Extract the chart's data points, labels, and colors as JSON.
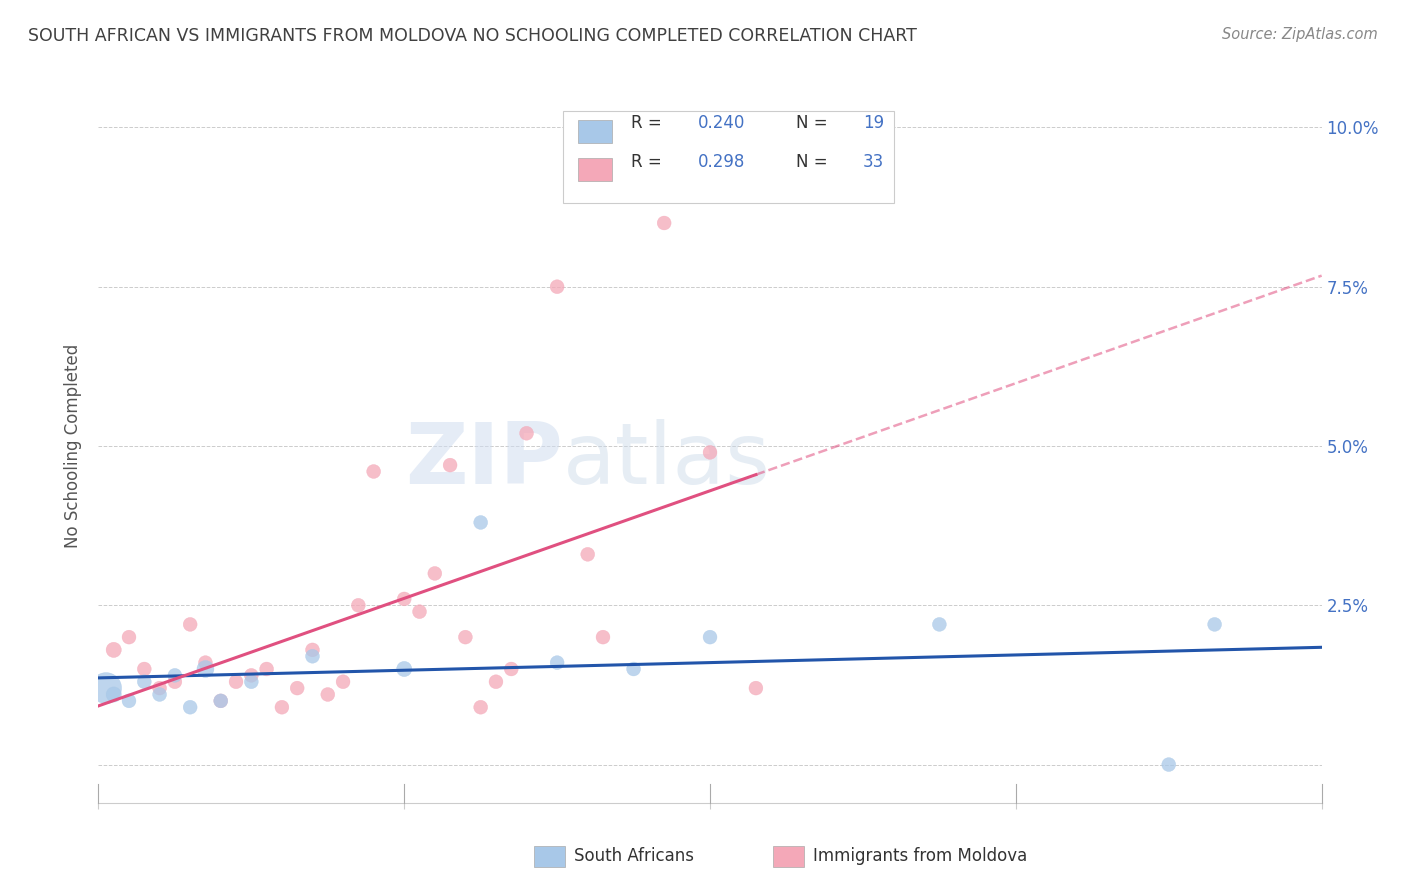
{
  "title": "SOUTH AFRICAN VS IMMIGRANTS FROM MOLDOVA NO SCHOOLING COMPLETED CORRELATION CHART",
  "source": "Source: ZipAtlas.com",
  "ylabel": "No Schooling Completed",
  "yticks": [
    0.0,
    0.025,
    0.05,
    0.075,
    0.1
  ],
  "ytick_labels": [
    "",
    "2.5%",
    "5.0%",
    "7.5%",
    "10.0%"
  ],
  "xlim": [
    0.0,
    0.08
  ],
  "ylim": [
    -0.006,
    0.106
  ],
  "blue_color": "#a8c8e8",
  "pink_color": "#f4a8b8",
  "blue_line_color": "#2255aa",
  "pink_line_color": "#e05080",
  "title_color": "#404040",
  "axis_color": "#4472c4",
  "watermark_zip": "ZIP",
  "watermark_atlas": "atlas",
  "south_africans_x": [
    0.0005,
    0.001,
    0.002,
    0.003,
    0.004,
    0.005,
    0.006,
    0.007,
    0.008,
    0.01,
    0.014,
    0.02,
    0.025,
    0.03,
    0.035,
    0.04,
    0.055,
    0.07,
    0.073
  ],
  "south_africans_y": [
    0.012,
    0.011,
    0.01,
    0.013,
    0.011,
    0.014,
    0.009,
    0.015,
    0.01,
    0.013,
    0.017,
    0.015,
    0.038,
    0.016,
    0.015,
    0.02,
    0.022,
    0.0,
    0.022
  ],
  "south_africans_size": [
    500,
    120,
    100,
    100,
    100,
    100,
    100,
    150,
    100,
    100,
    100,
    120,
    100,
    100,
    100,
    100,
    100,
    100,
    100
  ],
  "moldova_x": [
    0.001,
    0.002,
    0.003,
    0.004,
    0.005,
    0.006,
    0.007,
    0.008,
    0.009,
    0.01,
    0.011,
    0.012,
    0.013,
    0.014,
    0.015,
    0.016,
    0.017,
    0.018,
    0.02,
    0.021,
    0.022,
    0.023,
    0.024,
    0.025,
    0.026,
    0.027,
    0.028,
    0.03,
    0.032,
    0.033,
    0.037,
    0.04,
    0.043
  ],
  "moldova_y": [
    0.018,
    0.02,
    0.015,
    0.012,
    0.013,
    0.022,
    0.016,
    0.01,
    0.013,
    0.014,
    0.015,
    0.009,
    0.012,
    0.018,
    0.011,
    0.013,
    0.025,
    0.046,
    0.026,
    0.024,
    0.03,
    0.047,
    0.02,
    0.009,
    0.013,
    0.015,
    0.052,
    0.075,
    0.033,
    0.02,
    0.085,
    0.049,
    0.012
  ],
  "moldova_size": [
    120,
    100,
    100,
    100,
    100,
    100,
    100,
    100,
    100,
    100,
    100,
    100,
    100,
    100,
    100,
    100,
    100,
    100,
    100,
    100,
    100,
    100,
    100,
    100,
    100,
    100,
    100,
    100,
    100,
    100,
    100,
    100,
    100
  ]
}
